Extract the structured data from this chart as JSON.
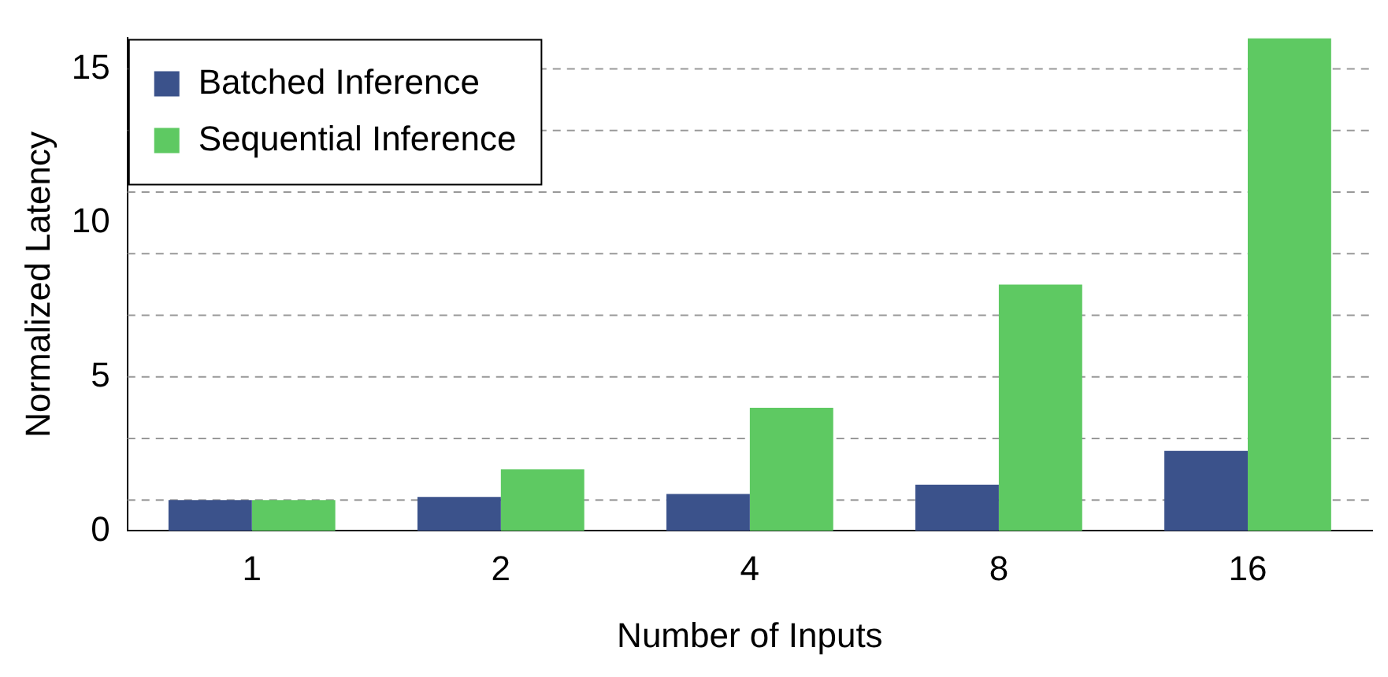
{
  "chart_data": {
    "type": "bar",
    "xlabel": "Number of Inputs",
    "ylabel": "Normalized Latency",
    "categories": [
      "1",
      "2",
      "4",
      "8",
      "16"
    ],
    "series": [
      {
        "name": "Batched Inference",
        "color": "#3b528b",
        "values": [
          1,
          1.1,
          1.2,
          1.5,
          2.6
        ]
      },
      {
        "name": "Sequential Inference",
        "color": "#5ec962",
        "values": [
          1,
          2,
          4,
          8,
          16
        ]
      }
    ],
    "ylim": [
      0,
      16
    ],
    "yticks": [
      0,
      5,
      10,
      15
    ],
    "grid": false,
    "legend": "top left",
    "ref_lines": [
      {
        "axis": "y",
        "value": 1,
        "color": "#999999",
        "line_style": "dashed"
      },
      {
        "axis": "y",
        "value": 3,
        "color": "#999999",
        "line_style": "dashed"
      },
      {
        "axis": "y",
        "value": 5,
        "color": "#999999",
        "line_style": "dashed"
      },
      {
        "axis": "y",
        "value": 7,
        "color": "#999999",
        "line_style": "dashed"
      },
      {
        "axis": "y",
        "value": 9,
        "color": "#999999",
        "line_style": "dashed"
      },
      {
        "axis": "y",
        "value": 11,
        "color": "#999999",
        "line_style": "dashed"
      },
      {
        "axis": "y",
        "value": 13,
        "color": "#999999",
        "line_style": "dashed"
      },
      {
        "axis": "y",
        "value": 15,
        "color": "#999999",
        "line_style": "dashed"
      }
    ]
  }
}
